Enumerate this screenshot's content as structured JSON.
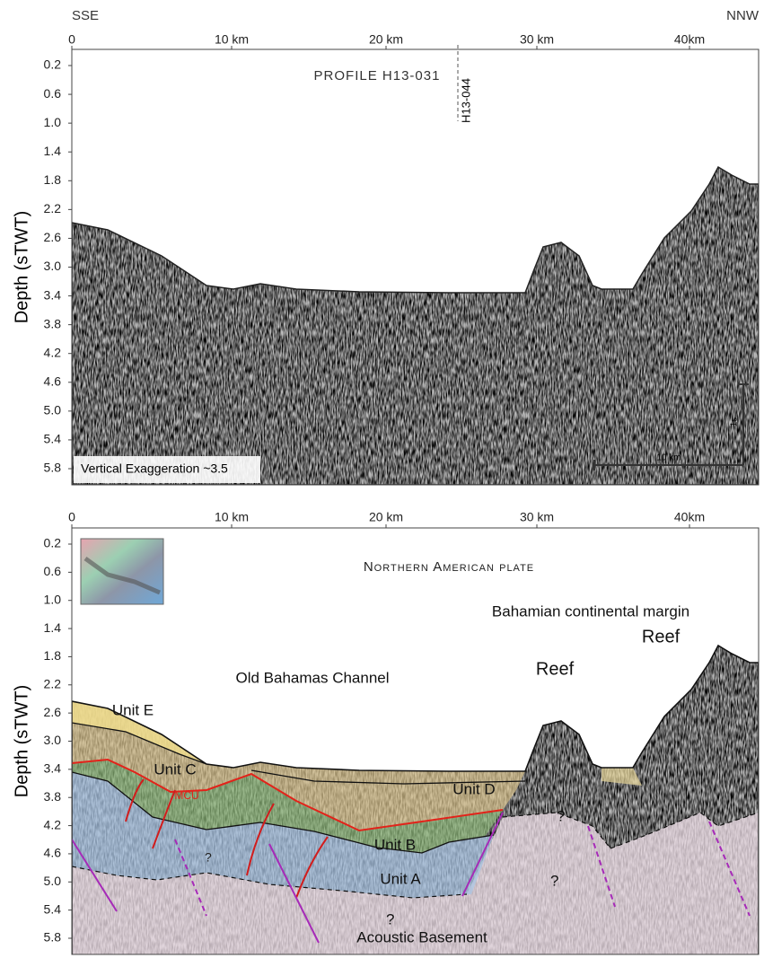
{
  "header": {
    "left": "SSE",
    "right": "NNW"
  },
  "panels": [
    {
      "x_ticks": [
        "0",
        "10 km",
        "20 km",
        "30 km",
        "40km"
      ],
      "y_label": "Depth (sTWT)",
      "y_ticks": [
        "0.2",
        "0.6",
        "1.0",
        "1.4",
        "1.8",
        "2.2",
        "2.6",
        "3.0",
        "3.4",
        "3.8",
        "4.2",
        "4.6",
        "5.0",
        "5.4",
        "5.8"
      ],
      "title": "PROFILE H13-031",
      "crossing_line": "H13-044",
      "note": "Vertical Exaggeration ~3.5",
      "scale_horizontal": "10 km",
      "scale_vertical": "1s"
    },
    {
      "x_ticks": [
        "0",
        "10 km",
        "20 km",
        "30 km",
        "40km"
      ],
      "y_label": "Depth (sTWT)",
      "y_ticks": [
        "0.2",
        "0.6",
        "1.0",
        "1.4",
        "1.8",
        "2.2",
        "2.6",
        "3.0",
        "3.4",
        "3.8",
        "4.2",
        "4.6",
        "5.0",
        "5.4",
        "5.8"
      ],
      "plate": "Northern American plate",
      "margin": "Bahamian continental margin",
      "channel": "Old Bahamas Channel",
      "reefs": [
        "Reef",
        "Reef"
      ],
      "units": {
        "e": "Unit E",
        "c": "Unit C",
        "mcu": "MCU",
        "d": "Unit D",
        "b": "Unit B",
        "a": "Unit A"
      },
      "basement": "Acoustic Basement",
      "question_marks": [
        "?",
        "?",
        "?",
        "?"
      ]
    }
  ]
}
